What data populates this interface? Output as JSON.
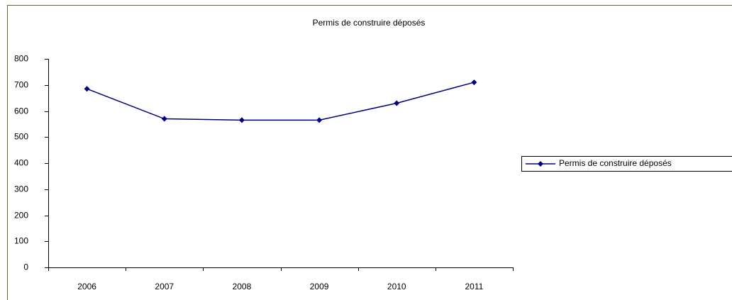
{
  "chart_data": {
    "type": "line",
    "title": "Permis de construire déposés",
    "categories": [
      "2006",
      "2007",
      "2008",
      "2009",
      "2010",
      "2011"
    ],
    "series": [
      {
        "name": "Permis de construire déposés",
        "color": "#000080",
        "values": [
          685,
          570,
          565,
          565,
          630,
          710
        ]
      }
    ],
    "ylim": [
      0,
      800
    ],
    "yticks": [
      0,
      100,
      200,
      300,
      400,
      500,
      600,
      700,
      800
    ],
    "grid": false,
    "legend": "right"
  }
}
